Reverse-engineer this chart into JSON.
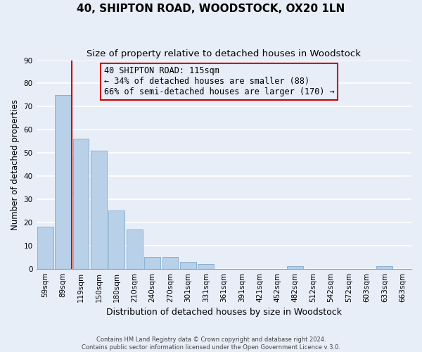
{
  "title": "40, SHIPTON ROAD, WOODSTOCK, OX20 1LN",
  "subtitle": "Size of property relative to detached houses in Woodstock",
  "xlabel": "Distribution of detached houses by size in Woodstock",
  "ylabel": "Number of detached properties",
  "footer_line1": "Contains HM Land Registry data © Crown copyright and database right 2024.",
  "footer_line2": "Contains public sector information licensed under the Open Government Licence v 3.0.",
  "bar_labels": [
    "59sqm",
    "89sqm",
    "119sqm",
    "150sqm",
    "180sqm",
    "210sqm",
    "240sqm",
    "270sqm",
    "301sqm",
    "331sqm",
    "361sqm",
    "391sqm",
    "421sqm",
    "452sqm",
    "482sqm",
    "512sqm",
    "542sqm",
    "572sqm",
    "603sqm",
    "633sqm",
    "663sqm"
  ],
  "bar_values": [
    18,
    75,
    56,
    51,
    25,
    17,
    5,
    5,
    3,
    2,
    0,
    0,
    0,
    0,
    1,
    0,
    0,
    0,
    0,
    1,
    0
  ],
  "bar_color": "#b8d0e8",
  "bar_edge_color": "#8ab0d0",
  "bg_color": "#e8eef8",
  "grid_color": "#ffffff",
  "annotation_line1": "40 SHIPTON ROAD: 115sqm",
  "annotation_line2": "← 34% of detached houses are smaller (88)",
  "annotation_line3": "66% of semi-detached houses are larger (170) →",
  "annotation_box_color": "#cc0000",
  "vline_color": "#cc0000",
  "vline_x": 1.5,
  "ylim": [
    0,
    90
  ],
  "yticks": [
    0,
    10,
    20,
    30,
    40,
    50,
    60,
    70,
    80,
    90
  ],
  "title_fontsize": 11,
  "subtitle_fontsize": 9.5,
  "xlabel_fontsize": 9,
  "ylabel_fontsize": 8.5,
  "tick_fontsize": 7.5,
  "annotation_fontsize": 8.5,
  "footer_fontsize": 6
}
